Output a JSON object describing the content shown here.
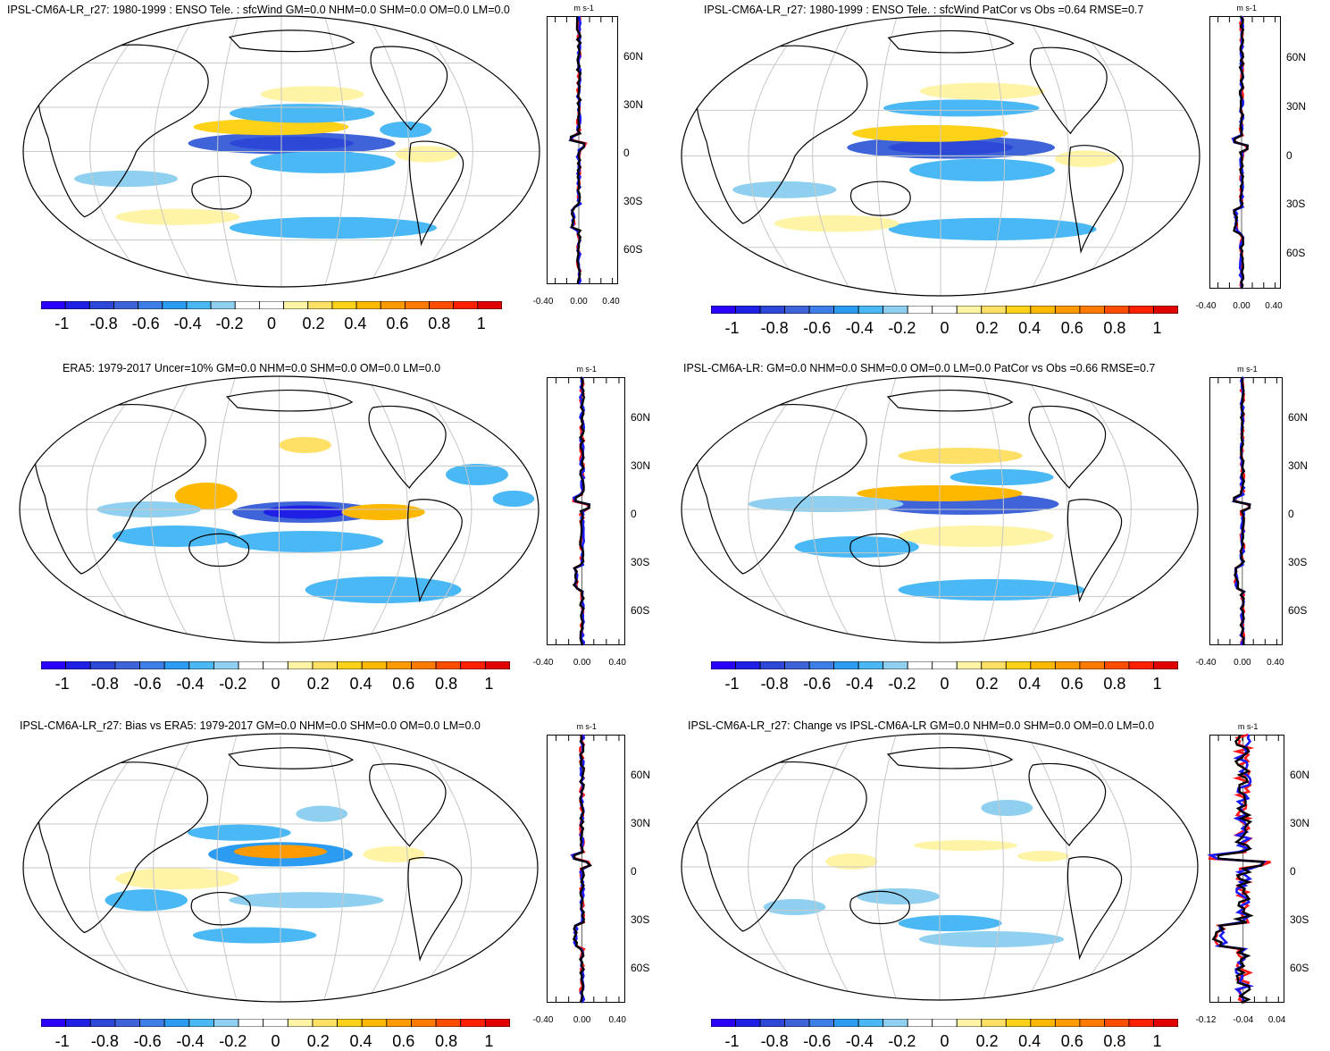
{
  "colors": {
    "palette": [
      "#2a00ff",
      "#1f1fe6",
      "#2d48d6",
      "#3f63d8",
      "#3d7fe6",
      "#2b9cf2",
      "#49b8f5",
      "#8fd0f0",
      "#ffffff",
      "#ffffff",
      "#fff3a6",
      "#ffe066",
      "#ffd21a",
      "#ffb800",
      "#ff9a00",
      "#ff7a00",
      "#ff4d00",
      "#ff2000",
      "#e00000"
    ],
    "model_line": "#ff1a1a",
    "obs_line": "#1a1aff",
    "mean_line": "#000000",
    "grid": "#c8c8c8"
  },
  "panels": [
    {
      "id": "model-enso",
      "title": "IPSL-CM6A-LR_r27: 1980-1999 : ENSO Tele. : sfcWind GM=0.0 NHM=0.0 SHM=0.0 OM=0.0 LM=0.0",
      "profile_unit": "m s-1",
      "profile_xticks": [
        "-0.40",
        "0.00",
        "0.40"
      ],
      "lat_labels": [
        "60N",
        "30N",
        "0",
        "30S",
        "60S"
      ],
      "colorbar_labels": [
        "-1",
        "-0.8",
        "-0.6",
        "-0.4",
        "-0.2",
        "0",
        "0.2",
        "0.4",
        "0.6",
        "0.8",
        "1"
      ]
    },
    {
      "id": "model-enso-patcor",
      "title": "IPSL-CM6A-LR_r27: 1980-1999 : ENSO Tele. : sfcWind PatCor vs Obs =0.64 RMSE=0.7",
      "profile_unit": "m s-1",
      "profile_xticks": [
        "-0.40",
        "0.00",
        "0.40"
      ],
      "lat_labels": [
        "60N",
        "30N",
        "0",
        "30S",
        "60S"
      ],
      "colorbar_labels": [
        "-1",
        "-0.8",
        "-0.6",
        "-0.4",
        "-0.2",
        "0",
        "0.2",
        "0.4",
        "0.6",
        "0.8",
        "1"
      ]
    },
    {
      "id": "era5",
      "title": "ERA5: 1979-2017 Uncer=10% GM=0.0 NHM=0.0 SHM=0.0 OM=0.0 LM=0.0",
      "profile_unit": "m s-1",
      "profile_xticks": [
        "-0.40",
        "0.00",
        "0.40"
      ],
      "lat_labels": [
        "60N",
        "30N",
        "0",
        "30S",
        "60S"
      ],
      "colorbar_labels": [
        "-1",
        "-0.8",
        "-0.6",
        "-0.4",
        "-0.2",
        "0",
        "0.2",
        "0.4",
        "0.6",
        "0.8",
        "1"
      ]
    },
    {
      "id": "reference-model",
      "title": "IPSL-CM6A-LR: GM=0.0 NHM=0.0 SHM=0.0 OM=0.0 LM=0.0 PatCor vs Obs =0.66 RMSE=0.7",
      "profile_unit": "m s-1",
      "profile_xticks": [
        "-0.40",
        "0.00",
        "0.40"
      ],
      "lat_labels": [
        "60N",
        "30N",
        "0",
        "30S",
        "60S"
      ],
      "colorbar_labels": [
        "-1",
        "-0.8",
        "-0.6",
        "-0.4",
        "-0.2",
        "0",
        "0.2",
        "0.4",
        "0.6",
        "0.8",
        "1"
      ]
    },
    {
      "id": "bias",
      "title": "IPSL-CM6A-LR_r27: Bias vs ERA5: 1979-2017 GM=0.0 NHM=0.0 SHM=0.0 OM=0.0 LM=0.0",
      "profile_unit": "m s-1",
      "profile_xticks": [
        "-0.40",
        "0.00",
        "0.40"
      ],
      "lat_labels": [
        "60N",
        "30N",
        "0",
        "30S",
        "60S"
      ],
      "colorbar_labels": [
        "-1",
        "-0.8",
        "-0.6",
        "-0.4",
        "-0.2",
        "0",
        "0.2",
        "0.4",
        "0.6",
        "0.8",
        "1"
      ]
    },
    {
      "id": "change",
      "title": "IPSL-CM6A-LR_r27: Change vs IPSL-CM6A-LR GM=0.0 NHM=0.0 SHM=0.0 OM=0.0 LM=0.0",
      "profile_unit": "m s-1",
      "profile_xticks": [
        "-0.12",
        "-0.04",
        "0.04"
      ],
      "lat_labels": [
        "60N",
        "30N",
        "0",
        "30S",
        "60S"
      ],
      "colorbar_labels": [
        "-1",
        "-0.8",
        "-0.6",
        "-0.4",
        "-0.2",
        "0",
        "0.2",
        "0.4",
        "0.6",
        "0.8",
        "1"
      ]
    }
  ]
}
